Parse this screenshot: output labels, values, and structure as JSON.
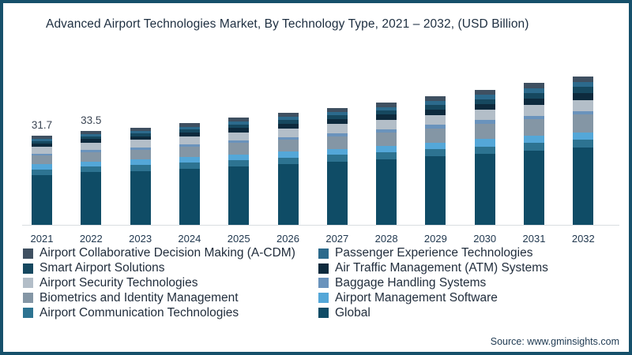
{
  "frame": {
    "border_color": "#16506b",
    "background": "#ffffff"
  },
  "header": {
    "title": "Advanced Airport Technologies Market, By Technology Type, 2021 – 2032, (USD Billion)"
  },
  "source": {
    "label": "Source: www.gminsights.com"
  },
  "chart_data": {
    "type": "bar",
    "stacked": true,
    "title": "Advanced Airport Technologies Market, By Technology Type, 2021 – 2032, (USD Billion)",
    "unit": "USD Billion",
    "xlabel": "",
    "ylabel": "",
    "ylim": [
      0,
      56.2
    ],
    "grid": false,
    "axis_line_color": "#d9dde1",
    "legend_position": "bottom, two columns",
    "categories": [
      "2021",
      "2022",
      "2023",
      "2024",
      "2025",
      "2026",
      "2027",
      "2028",
      "2029",
      "2030",
      "2031",
      "2032"
    ],
    "data_labels": [
      "31.7",
      "33.5",
      "",
      "",
      "",
      "",
      "",
      "",
      "",
      "",
      "",
      ""
    ],
    "totals": [
      31.7,
      33.5,
      34.7,
      36.2,
      38.1,
      39.8,
      41.7,
      43.6,
      45.8,
      48.1,
      50.5,
      52.9
    ],
    "series": [
      {
        "key": "acdm",
        "name": "Airport Collaborative Decision Making (A-CDM)",
        "color": "#3f5061",
        "values": [
          1.1,
          1.2,
          1.2,
          1.3,
          1.4,
          1.4,
          1.5,
          1.6,
          1.7,
          1.8,
          1.9,
          2.0
        ]
      },
      {
        "key": "pet",
        "name": "Passenger Experience Technologies",
        "color": "#2c6a8c",
        "values": [
          0.8,
          0.9,
          0.9,
          1.0,
          1.1,
          1.1,
          1.2,
          1.3,
          1.4,
          1.5,
          1.6,
          1.7
        ]
      },
      {
        "key": "smart",
        "name": "Smart Airport Solutions",
        "color": "#16485f",
        "values": [
          0.8,
          0.9,
          1.0,
          1.0,
          1.1,
          1.3,
          1.4,
          1.5,
          1.6,
          1.8,
          2.0,
          2.2
        ]
      },
      {
        "key": "atm",
        "name": "Air Traffic Management (ATM) Systems",
        "color": "#0d2a3d",
        "values": [
          1.1,
          1.2,
          1.3,
          1.4,
          1.5,
          1.6,
          1.7,
          1.8,
          2.0,
          2.1,
          2.3,
          2.5
        ]
      },
      {
        "key": "security",
        "name": "Airport Security Technologies",
        "color": "#b3bec8",
        "values": [
          2.5,
          2.6,
          2.7,
          2.8,
          2.9,
          3.1,
          3.2,
          3.3,
          3.5,
          3.6,
          3.8,
          3.9
        ]
      },
      {
        "key": "baggage",
        "name": "Baggage Handling Systems",
        "color": "#6a93bc",
        "values": [
          0.8,
          0.8,
          0.9,
          0.9,
          1.0,
          1.0,
          1.1,
          1.1,
          1.2,
          1.3,
          1.3,
          1.4
        ]
      },
      {
        "key": "biometrics",
        "name": "Biometrics and Identity Management",
        "color": "#8496a5",
        "values": [
          3.1,
          3.3,
          3.5,
          3.7,
          4.0,
          4.2,
          4.5,
          4.8,
          5.1,
          5.5,
          5.8,
          6.2
        ]
      },
      {
        "key": "ams",
        "name": "Airport Management Software",
        "color": "#54a7d8",
        "values": [
          1.7,
          1.8,
          1.9,
          1.9,
          2.0,
          2.1,
          2.2,
          2.3,
          2.4,
          2.6,
          2.7,
          2.8
        ]
      },
      {
        "key": "act",
        "name": "Airport Communication Technologies",
        "color": "#2d7391",
        "values": [
          2.0,
          2.1,
          2.1,
          2.2,
          2.3,
          2.3,
          2.4,
          2.5,
          2.5,
          2.6,
          2.7,
          2.8
        ]
      },
      {
        "key": "global",
        "name": "Global",
        "color": "#0f4c66",
        "values": [
          17.8,
          18.7,
          19.2,
          20.0,
          20.8,
          21.7,
          22.5,
          23.4,
          24.4,
          25.3,
          26.4,
          27.4
        ]
      }
    ]
  }
}
